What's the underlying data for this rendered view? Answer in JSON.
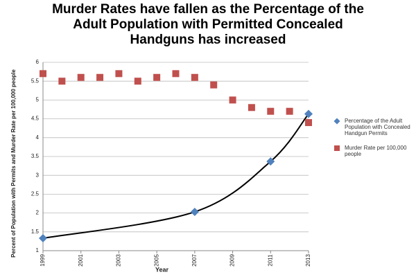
{
  "chart_data": {
    "type": "scatter",
    "title": [
      "Murder Rates have fallen as the Percentage of the",
      "Adult Population with Permitted Concealed",
      "Handguns has increased"
    ],
    "x_label": "Year",
    "y_label": "Percent of Population with Permits and Murder Rate per 100,000 people",
    "xlim": [
      1999,
      2013
    ],
    "xticks": [
      1999,
      2001,
      2003,
      2005,
      2007,
      2009,
      2011,
      2013
    ],
    "ylim": [
      1,
      6
    ],
    "yticks": [
      1,
      1.5,
      2,
      2.5,
      3,
      3.5,
      4,
      4.5,
      5,
      5.5,
      6
    ],
    "grid": true,
    "legend": "right",
    "series": [
      {
        "name": "Percentage of the Adult Population with Concealed Handgun Permits",
        "color": "#4f81bd",
        "marker": "diamond",
        "trendline": true,
        "x": [
          1999,
          2007,
          2011,
          2013
        ],
        "values": [
          1.33,
          2.03,
          3.37,
          4.63
        ]
      },
      {
        "name": "Murder Rate per 100,000 people",
        "color": "#c0504d",
        "marker": "square",
        "x": [
          1999,
          2000,
          2001,
          2002,
          2003,
          2004,
          2005,
          2006,
          2007,
          2008,
          2009,
          2010,
          2011,
          2012,
          2013
        ],
        "values": [
          5.7,
          5.5,
          5.6,
          5.6,
          5.7,
          5.5,
          5.6,
          5.7,
          5.6,
          5.4,
          5.0,
          4.8,
          4.7,
          4.7,
          4.4
        ]
      }
    ]
  }
}
